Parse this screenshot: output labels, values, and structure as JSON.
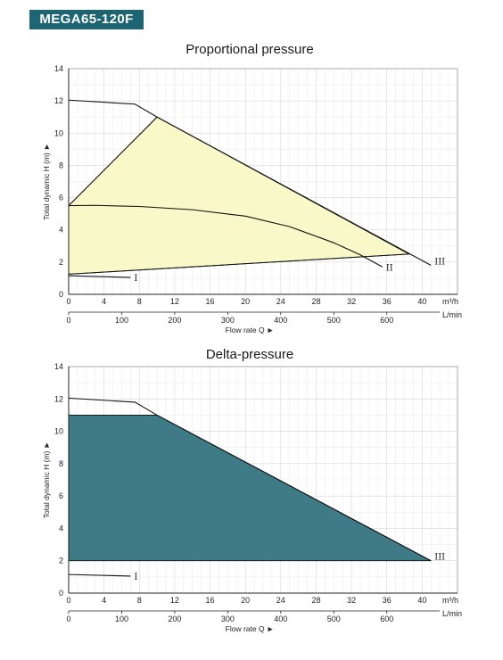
{
  "model": "MEGA65-120F",
  "chart_data": [
    {
      "type": "line",
      "title": "Proportional pressure",
      "ylabel": "Total dynamic H (m) ►",
      "xlabel": "Flow rate Q ►",
      "x_unit_top": "m³/h",
      "x_unit_bottom": "L/min",
      "xlim": [
        0,
        44
      ],
      "ylim": [
        0,
        14
      ],
      "xticks_top": [
        0,
        4,
        8,
        12,
        16,
        20,
        24,
        28,
        32,
        36,
        40
      ],
      "xticks_bottom": [
        0,
        100,
        200,
        300,
        400,
        500,
        600
      ],
      "yticks": [
        0,
        2,
        4,
        6,
        8,
        10,
        12,
        14
      ],
      "grid": true,
      "region_color": "#f8f8c8",
      "region": [
        [
          0,
          5.5
        ],
        [
          10,
          11
        ],
        [
          38.5,
          2.5
        ],
        [
          0,
          1.25
        ]
      ],
      "series": [
        {
          "name": "I",
          "x": [
            0,
            7
          ],
          "y": [
            1.15,
            1.05
          ]
        },
        {
          "name": "II",
          "x": [
            0,
            3,
            8,
            14,
            20,
            25,
            30,
            33,
            35.5
          ],
          "y": [
            5.5,
            5.52,
            5.45,
            5.25,
            4.85,
            4.2,
            3.2,
            2.45,
            1.7
          ]
        },
        {
          "name": "III",
          "x": [
            0,
            7.5,
            10,
            41
          ],
          "y": [
            12.05,
            11.8,
            11,
            1.8
          ]
        }
      ],
      "extra_lines": [
        {
          "x": [
            0,
            10
          ],
          "y": [
            5.5,
            11
          ]
        },
        {
          "x": [
            0,
            38.5
          ],
          "y": [
            1.25,
            2.5
          ]
        }
      ]
    },
    {
      "type": "line",
      "title": "Delta-pressure",
      "ylabel": "Total dynamic H (m) ►",
      "xlabel": "Flow rate Q ►",
      "x_unit_top": "m³/h",
      "x_unit_bottom": "L/min",
      "xlim": [
        0,
        44
      ],
      "ylim": [
        0,
        14
      ],
      "xticks_top": [
        0,
        4,
        8,
        12,
        16,
        20,
        24,
        28,
        32,
        36,
        40
      ],
      "xticks_bottom": [
        0,
        100,
        200,
        300,
        400,
        500,
        600
      ],
      "yticks": [
        0,
        2,
        4,
        6,
        8,
        10,
        12,
        14
      ],
      "grid": true,
      "region_color": "#3f7b86",
      "region": [
        [
          0,
          11
        ],
        [
          10,
          11
        ],
        [
          41,
          2
        ],
        [
          0,
          2
        ]
      ],
      "series": [
        {
          "name": "I",
          "x": [
            0,
            7
          ],
          "y": [
            1.15,
            1.05
          ]
        },
        {
          "name": "III",
          "x": [
            0,
            7.5,
            10,
            41
          ],
          "y": [
            12.05,
            11.8,
            11,
            2
          ]
        }
      ],
      "extra_lines": []
    }
  ]
}
